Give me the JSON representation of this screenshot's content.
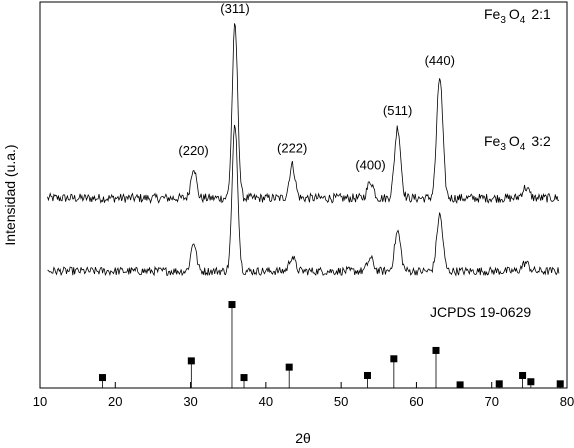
{
  "chart_data": {
    "type": "line",
    "xlabel": "2θ",
    "ylabel": "Intensidad (u.a.)",
    "xlim": [
      10,
      80
    ],
    "x_ticks": [
      10,
      20,
      30,
      40,
      50,
      60,
      70,
      80
    ],
    "grid": false,
    "legend": "none",
    "line_color": "#000000",
    "series": [
      {
        "name": "Fe3O4 2:1",
        "name_parts": {
          "element": "Fe",
          "sub1": "3",
          "element2": "O",
          "sub2": "4",
          "ratio": "2:1"
        },
        "baseline": 9.1,
        "noise": 0.22,
        "peaks": [
          {
            "x": 30.4,
            "h": 1.5,
            "w": 0.35
          },
          {
            "x": 35.9,
            "h": 8.3,
            "w": 0.36
          },
          {
            "x": 43.5,
            "h": 1.6,
            "w": 0.38
          },
          {
            "x": 53.9,
            "h": 0.8,
            "w": 0.4
          },
          {
            "x": 57.5,
            "h": 3.4,
            "w": 0.4
          },
          {
            "x": 63.1,
            "h": 5.8,
            "w": 0.4
          },
          {
            "x": 74.5,
            "h": 0.5,
            "w": 0.45
          }
        ],
        "peak_labels": [
          {
            "x": 30.4,
            "text": "(220)"
          },
          {
            "x": 35.9,
            "text": "(311)"
          },
          {
            "x": 43.5,
            "text": "(222)"
          },
          {
            "x": 53.9,
            "text": "(400)"
          },
          {
            "x": 57.5,
            "text": "(511)"
          },
          {
            "x": 63.1,
            "text": "(440)"
          }
        ]
      },
      {
        "name": "Fe3O4 3:2",
        "name_parts": {
          "element": "Fe",
          "sub1": "3",
          "element2": "O",
          "sub2": "4",
          "ratio": "3:2"
        },
        "baseline": 5.6,
        "noise": 0.2,
        "peaks": [
          {
            "x": 30.4,
            "h": 1.4,
            "w": 0.35
          },
          {
            "x": 35.9,
            "h": 7.1,
            "w": 0.36
          },
          {
            "x": 43.5,
            "h": 0.7,
            "w": 0.38
          },
          {
            "x": 53.9,
            "h": 0.6,
            "w": 0.4
          },
          {
            "x": 57.5,
            "h": 1.9,
            "w": 0.4
          },
          {
            "x": 63.1,
            "h": 2.7,
            "w": 0.4
          },
          {
            "x": 74.5,
            "h": 0.4,
            "w": 0.45
          }
        ]
      }
    ],
    "reference": {
      "name": "JCPDS 19-0629",
      "baseline": 0,
      "peaks": [
        {
          "x": 18.3,
          "y": 0.5
        },
        {
          "x": 30.1,
          "y": 1.3
        },
        {
          "x": 35.5,
          "y": 4.0
        },
        {
          "x": 37.1,
          "y": 0.5
        },
        {
          "x": 43.1,
          "y": 1.0
        },
        {
          "x": 53.5,
          "y": 0.6
        },
        {
          "x": 57.0,
          "y": 1.4
        },
        {
          "x": 62.6,
          "y": 1.8
        },
        {
          "x": 65.8,
          "y": 0.15
        },
        {
          "x": 71.0,
          "y": 0.2
        },
        {
          "x": 74.1,
          "y": 0.6
        },
        {
          "x": 75.2,
          "y": 0.3
        },
        {
          "x": 79.1,
          "y": 0.2
        }
      ]
    }
  }
}
